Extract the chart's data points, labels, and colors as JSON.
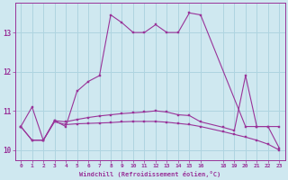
{
  "xlabel": "Windchill (Refroidissement éolien,°C)",
  "background_color": "#cfe8f0",
  "grid_color": "#aed4e0",
  "line_color": "#993399",
  "xlim": [
    -0.5,
    23.5
  ],
  "ylim": [
    9.75,
    13.75
  ],
  "yticks": [
    10,
    11,
    12,
    13
  ],
  "xticks": [
    0,
    1,
    2,
    3,
    4,
    5,
    6,
    7,
    8,
    9,
    10,
    11,
    12,
    13,
    14,
    15,
    16,
    18,
    19,
    20,
    21,
    22,
    23
  ],
  "series1_x": [
    0,
    1,
    2,
    3,
    4,
    5,
    6,
    7,
    8,
    9,
    10,
    11,
    12,
    13,
    14,
    15,
    16,
    20,
    21,
    22,
    23
  ],
  "series1_y": [
    10.6,
    11.1,
    10.25,
    10.75,
    10.6,
    11.5,
    11.75,
    11.9,
    13.45,
    13.25,
    13.0,
    13.0,
    13.2,
    13.0,
    13.0,
    13.5,
    13.45,
    10.6,
    10.6,
    10.6,
    10.6
  ],
  "series2_x": [
    0,
    1,
    2,
    3,
    4,
    5,
    6,
    7,
    8,
    9,
    10,
    11,
    12,
    13,
    14,
    15,
    16,
    18,
    19,
    20,
    21,
    22,
    23
  ],
  "series2_y": [
    10.6,
    10.25,
    10.25,
    10.75,
    10.72,
    10.78,
    10.83,
    10.87,
    10.9,
    10.93,
    10.95,
    10.97,
    11.0,
    10.97,
    10.9,
    10.88,
    10.72,
    10.58,
    10.5,
    11.9,
    10.6,
    10.6,
    10.05
  ],
  "series3_x": [
    0,
    1,
    2,
    3,
    4,
    5,
    6,
    7,
    8,
    9,
    10,
    11,
    12,
    13,
    14,
    15,
    16,
    18,
    19,
    20,
    21,
    22,
    23
  ],
  "series3_y": [
    10.6,
    10.25,
    10.25,
    10.72,
    10.65,
    10.67,
    10.68,
    10.69,
    10.7,
    10.72,
    10.73,
    10.73,
    10.73,
    10.71,
    10.68,
    10.65,
    10.6,
    10.47,
    10.4,
    10.33,
    10.25,
    10.15,
    10.0
  ]
}
